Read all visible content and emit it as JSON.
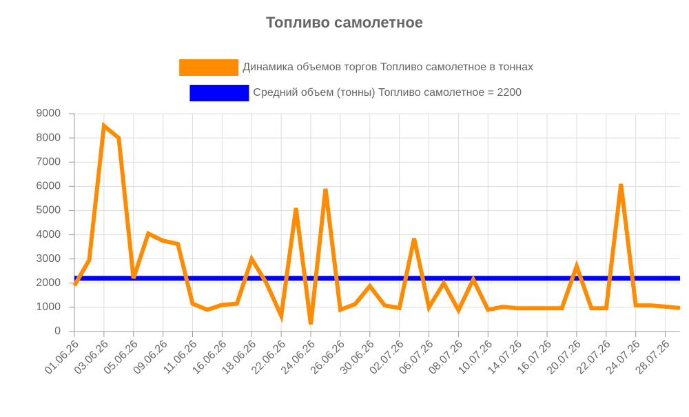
{
  "chart_data": {
    "type": "line",
    "title": "Топливо самолетное",
    "categories": [
      "01.06.26",
      null,
      "03.06.26",
      null,
      "05.06.26",
      null,
      "09.06.26",
      null,
      "11.06.26",
      null,
      "16.06.26",
      null,
      "18.06.26",
      null,
      "22.06.26",
      null,
      "24.06.26",
      null,
      "26.06.26",
      null,
      "30.06.26",
      null,
      "02.07.26",
      null,
      "06.07.26",
      null,
      "08.07.26",
      null,
      "10.07.26",
      null,
      "14.07.26",
      null,
      "16.07.26",
      null,
      "20.07.26",
      null,
      "22.07.26",
      null,
      "24.07.26",
      null,
      "28.07.26",
      null
    ],
    "series": [
      {
        "name": "Динамика объемов торгов Топливо самолетное в тоннах",
        "color": "#ff8c00",
        "values": [
          1900,
          2950,
          8500,
          8000,
          2200,
          4050,
          3750,
          3620,
          1150,
          900,
          1100,
          1150,
          3000,
          2000,
          650,
          5100,
          300,
          5900,
          900,
          1130,
          1880,
          1080,
          970,
          3850,
          1000,
          2000,
          880,
          2150,
          900,
          1020,
          960,
          960,
          960,
          960,
          2700,
          960,
          960,
          6100,
          1080,
          1080,
          1030,
          970
        ]
      },
      {
        "name": "Средний объем (тонны) Топливо самолетное = 2200",
        "color": "#0000ff",
        "values": [
          2200,
          2200,
          2200,
          2200,
          2200,
          2200,
          2200,
          2200,
          2200,
          2200,
          2200,
          2200,
          2200,
          2200,
          2200,
          2200,
          2200,
          2200,
          2200,
          2200,
          2200,
          2200,
          2200,
          2200,
          2200,
          2200,
          2200,
          2200,
          2200,
          2200,
          2200,
          2200,
          2200,
          2200,
          2200,
          2200,
          2200,
          2200,
          2200,
          2200,
          2200,
          2200
        ]
      }
    ],
    "ylim": [
      0,
      9000
    ],
    "yticks": [
      0,
      1000,
      2000,
      3000,
      4000,
      5000,
      6000,
      7000,
      8000,
      9000
    ],
    "grid": true
  }
}
